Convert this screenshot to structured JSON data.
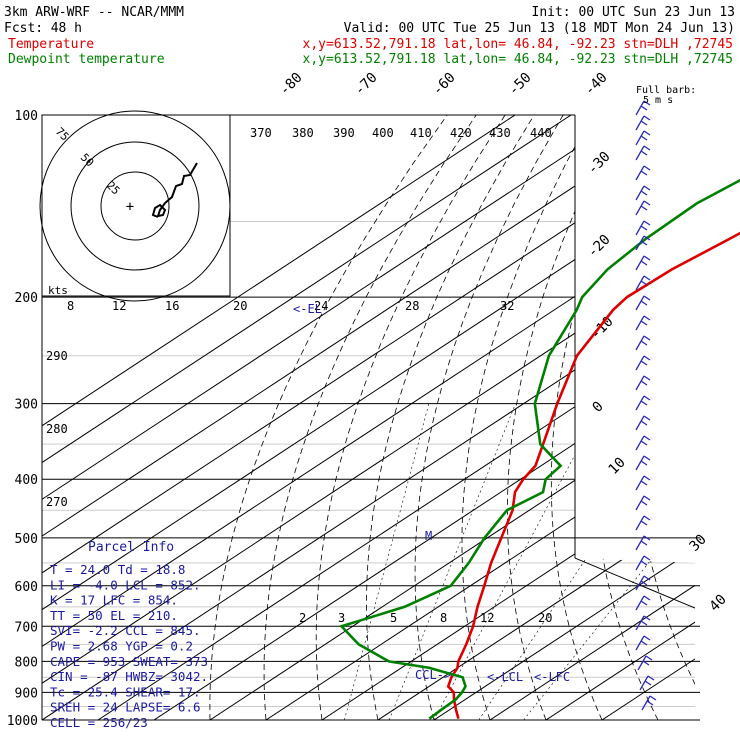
{
  "header": {
    "model": "3km ARW-WRF -- NCAR/MMM",
    "init": "Init: 00 UTC Sun 23 Jun 13",
    "fcst_label": "Fcst:",
    "fcst_value": "48 h",
    "valid": "Valid: 00 UTC Tue 25 Jun 13 (18 MDT Mon 24 Jun 13)",
    "temp_label": "Temperature",
    "dew_label": "Dewpoint temperature",
    "temp_loc": "x,y=613.52,791.18   lat,lon= 46.84, -92.23  stn=DLH ,72745",
    "dew_loc": "x,y=613.52,791.18   lat,lon= 46.84, -92.23  stn=DLH ,72745",
    "temp_color": "#dd0000",
    "dew_color": "#008000"
  },
  "chart_data": {
    "type": "line",
    "title": "",
    "ylabel": "",
    "xlabel": "",
    "y_scale": "log",
    "ylim": [
      1000,
      100
    ],
    "pressure_ticks": [
      "100",
      "200",
      "300",
      "400",
      "500",
      "600",
      "700",
      "800",
      "900",
      "1000"
    ],
    "isotherm_labels": [
      "-80",
      "-70",
      "-60",
      "-50",
      "-40",
      "-30",
      "-20",
      "-10",
      "0",
      "10",
      "30",
      "40"
    ],
    "theta_labels": [
      "370",
      "380",
      "390",
      "400",
      "410",
      "420",
      "430",
      "440",
      "290",
      "280",
      "270"
    ],
    "mixing_ratio_labels": [
      "2",
      "3",
      "5",
      "8",
      "12",
      "20"
    ],
    "wind_speed_labels": [
      "8",
      "12",
      "16",
      "20",
      "24",
      "28",
      "32"
    ],
    "wind_speed_unit": "kts",
    "hodograph_labels": [
      "75",
      "50",
      "25"
    ],
    "barb_label": "Full barb:",
    "barb_value": "5 m s",
    "level_markers": [
      "<-EL",
      "CCL->",
      "<-LCL",
      "<-LFC",
      "M"
    ],
    "series": [
      {
        "name": "Temperature",
        "color": "#dd0000",
        "points": [
          {
            "p": 995,
            "t": 24.0
          },
          {
            "p": 960,
            "t": 21.0
          },
          {
            "p": 925,
            "t": 18.0
          },
          {
            "p": 900,
            "t": 16.0
          },
          {
            "p": 880,
            "t": 13.4
          },
          {
            "p": 850,
            "t": 11.5
          },
          {
            "p": 820,
            "t": 10.0
          },
          {
            "p": 800,
            "t": 8.4
          },
          {
            "p": 750,
            "t": 5.2
          },
          {
            "p": 700,
            "t": 1.5
          },
          {
            "p": 650,
            "t": -3.0
          },
          {
            "p": 600,
            "t": -7.5
          },
          {
            "p": 550,
            "t": -12.5
          },
          {
            "p": 500,
            "t": -17.5
          },
          {
            "p": 450,
            "t": -23.0
          },
          {
            "p": 420,
            "t": -27.5
          },
          {
            "p": 400,
            "t": -29.5
          },
          {
            "p": 380,
            "t": -31.0
          },
          {
            "p": 350,
            "t": -35.5
          },
          {
            "p": 300,
            "t": -44.0
          },
          {
            "p": 250,
            "t": -53.5
          },
          {
            "p": 210,
            "t": -59.5
          },
          {
            "p": 200,
            "t": -60.5
          },
          {
            "p": 180,
            "t": -60.0
          },
          {
            "p": 160,
            "t": -58.0
          },
          {
            "p": 140,
            "t": -56.0
          },
          {
            "p": 120,
            "t": -54.5
          },
          {
            "p": 100,
            "t": -55.5
          }
        ]
      },
      {
        "name": "Dewpoint temperature",
        "color": "#008000",
        "points": [
          {
            "p": 995,
            "t": 18.8
          },
          {
            "p": 960,
            "t": 18.5
          },
          {
            "p": 925,
            "t": 18.3
          },
          {
            "p": 900,
            "t": 17.5
          },
          {
            "p": 880,
            "t": 16.5
          },
          {
            "p": 850,
            "t": 13.5
          },
          {
            "p": 820,
            "t": 5.0
          },
          {
            "p": 800,
            "t": -4.0
          },
          {
            "p": 750,
            "t": -14.0
          },
          {
            "p": 700,
            "t": -22.0
          },
          {
            "p": 650,
            "t": -16.0
          },
          {
            "p": 600,
            "t": -13.5
          },
          {
            "p": 550,
            "t": -16.5
          },
          {
            "p": 500,
            "t": -20.5
          },
          {
            "p": 450,
            "t": -24.0
          },
          {
            "p": 420,
            "t": -22.5
          },
          {
            "p": 400,
            "t": -25.5
          },
          {
            "p": 380,
            "t": -26.5
          },
          {
            "p": 350,
            "t": -36.0
          },
          {
            "p": 300,
            "t": -48.0
          },
          {
            "p": 250,
            "t": -58.5
          },
          {
            "p": 210,
            "t": -66.0
          },
          {
            "p": 200,
            "t": -68.5
          },
          {
            "p": 180,
            "t": -71.5
          },
          {
            "p": 160,
            "t": -73.0
          },
          {
            "p": 140,
            "t": -73.5
          },
          {
            "p": 120,
            "t": -71.0
          },
          {
            "p": 100,
            "t": -68.5
          }
        ]
      }
    ]
  },
  "parcel": {
    "title": "Parcel Info",
    "rows": [
      "T  =   24.0 Td =  18.8",
      "LI =   -4.0 LCL =  852.",
      "K  =     17 LFC =  854.",
      "TT =     50 EL  =  210.",
      "SVI=   -2.2 CCL =  845.",
      "PW =   2.68 YGP =   0.2",
      "CAPE =  953 SWEAT=  373",
      "CIN  =  -87 HWBZ= 3042.",
      "Tc  =  25.4 SHEAR=  17.",
      "SREH =   24 LAPSE=  6.6",
      "CELL = 256/23"
    ]
  }
}
